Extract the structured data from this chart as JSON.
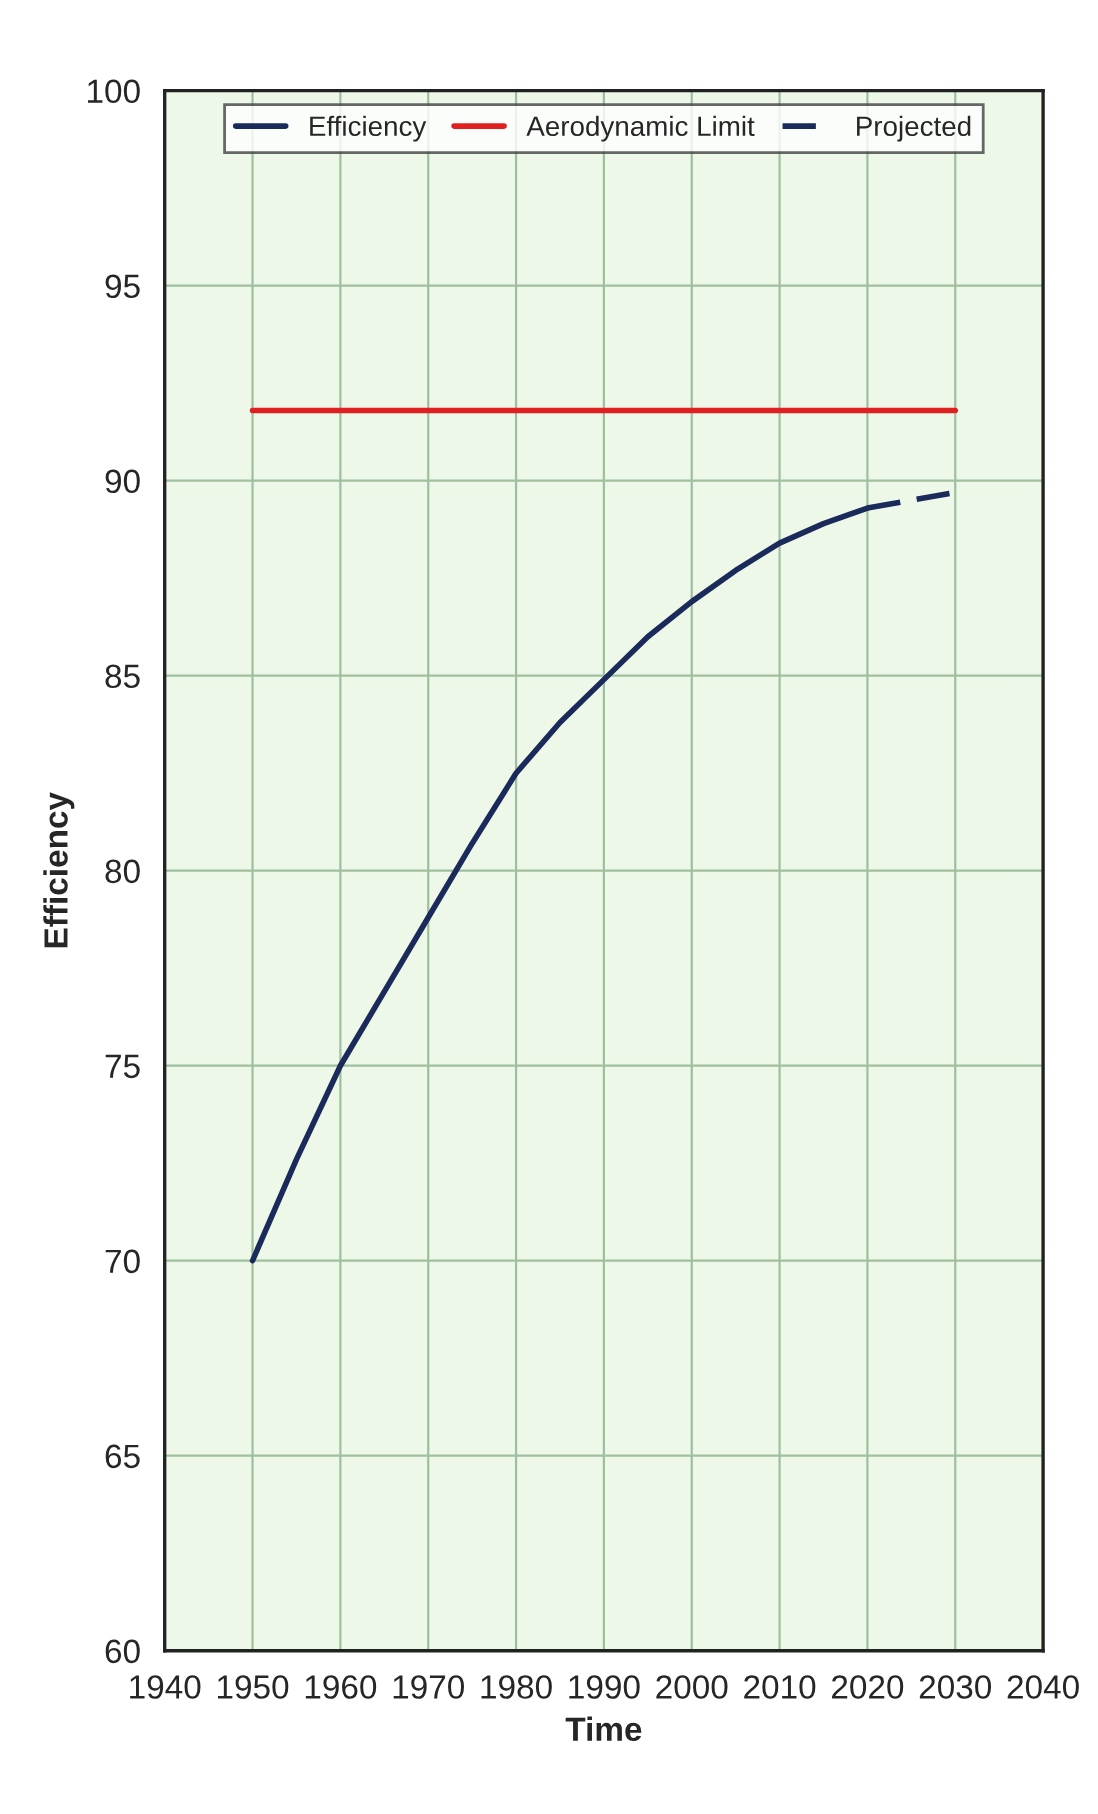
{
  "chart_data": {
    "type": "line",
    "xlabel": "Time",
    "ylabel": "Efficiency",
    "xlim": [
      1940,
      2040
    ],
    "xticks": [
      1940,
      1950,
      1960,
      1970,
      1980,
      1990,
      2000,
      2010,
      2020,
      2030,
      2040
    ],
    "ylim": [
      60,
      100
    ],
    "yticks": [
      60,
      65,
      70,
      75,
      80,
      85,
      90,
      95,
      100
    ],
    "grid": true,
    "legend": "top",
    "series": [
      {
        "name": "Efficiency",
        "color": "#1a2a5a",
        "line_style": "solid",
        "x": [
          1950,
          1955,
          1960,
          1965,
          1970,
          1975,
          1980,
          1985,
          1990,
          1995,
          2000,
          2005,
          2010,
          2015,
          2020
        ],
        "values": [
          70,
          72.6,
          75.0,
          76.9,
          78.8,
          80.7,
          82.5,
          83.8,
          84.9,
          86.0,
          86.9,
          87.7,
          88.4,
          88.9,
          89.3
        ]
      },
      {
        "name": "Aerodynamic Limit",
        "color": "#e02020",
        "line_style": "solid",
        "x": [
          1950,
          2030
        ],
        "values": [
          91.8,
          91.8
        ]
      },
      {
        "name": "Projected",
        "color": "#1a2a5a",
        "line_style": "dashed",
        "x": [
          2020,
          2025,
          2030
        ],
        "values": [
          89.3,
          89.5,
          89.7
        ]
      }
    ]
  }
}
